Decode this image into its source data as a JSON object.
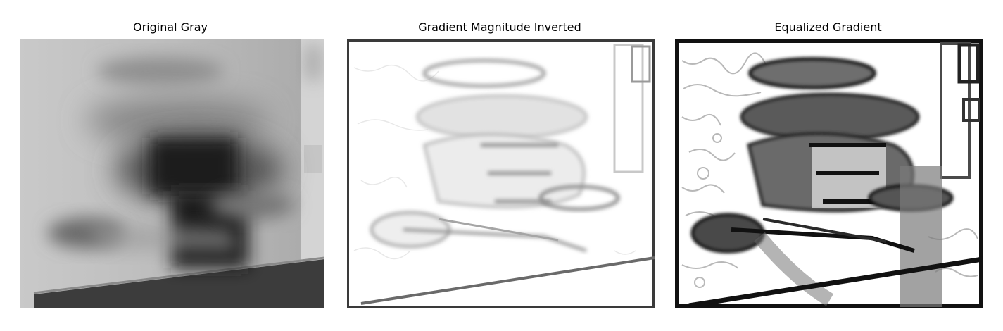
{
  "panels": [
    {
      "title": "Original Gray"
    },
    {
      "title": "Gradient Magnitude Inverted"
    },
    {
      "title": "Equalized Gradient"
    }
  ]
}
